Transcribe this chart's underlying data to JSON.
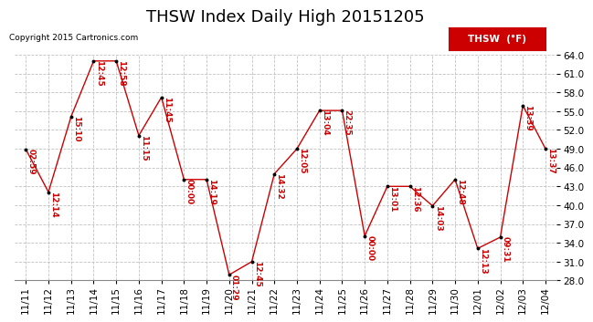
{
  "title": "THSW Index Daily High 20151205",
  "copyright": "Copyright 2015 Cartronics.com",
  "legend_label": "THSW  (°F)",
  "x_labels": [
    "11/11",
    "11/12",
    "11/13",
    "11/14",
    "11/15",
    "11/16",
    "11/17",
    "11/18",
    "11/19",
    "11/20",
    "11/21",
    "11/22",
    "11/23",
    "11/24",
    "11/25",
    "11/26",
    "11/27",
    "11/28",
    "11/29",
    "11/30",
    "12/01",
    "12/02",
    "12/03",
    "12/04"
  ],
  "y_values": [
    48.9,
    42.1,
    54.1,
    63.0,
    63.0,
    51.1,
    57.2,
    44.1,
    44.1,
    28.9,
    31.0,
    45.0,
    49.0,
    55.1,
    55.1,
    35.1,
    43.0,
    43.0,
    39.9,
    44.1,
    33.1,
    34.9,
    55.9,
    49.0
  ],
  "annotations": [
    "02:59",
    "12:14",
    "15:10",
    "12:45",
    "12:58",
    "11:15",
    "11:45",
    "00:00",
    "14:19",
    "01:29",
    "12:45",
    "14:32",
    "12:05",
    "13:04",
    "22:35",
    "00:00",
    "13:01",
    "12:36",
    "14:03",
    "12:48",
    "12:13",
    "09:31",
    "13:39",
    "13:37"
  ],
  "line_color": "#cc0000",
  "marker_color": "#000000",
  "annotation_color": "#cc0000",
  "background_color": "#ffffff",
  "grid_color": "#bbbbbb",
  "ylim": [
    28.0,
    64.0
  ],
  "yticks": [
    28.0,
    31.0,
    34.0,
    37.0,
    40.0,
    43.0,
    46.0,
    49.0,
    52.0,
    55.0,
    58.0,
    61.0,
    64.0
  ],
  "legend_bg": "#cc0000",
  "legend_text_color": "#ffffff",
  "title_fontsize": 13,
  "annotation_fontsize": 6.5,
  "tick_fontsize": 7.5,
  "copyright_fontsize": 6.5
}
